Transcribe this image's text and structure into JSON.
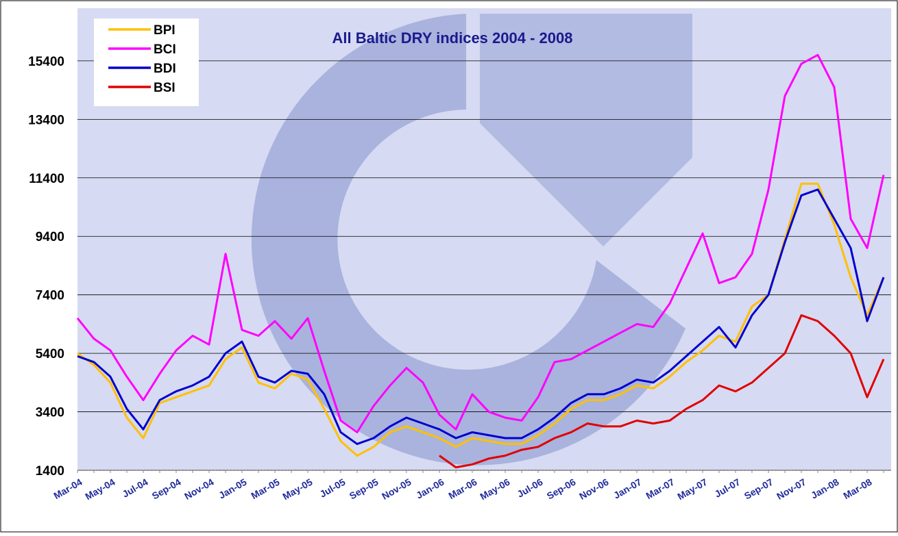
{
  "chart_data": {
    "type": "line",
    "title": "All Baltic DRY indices 2004 - 2008",
    "categories": [
      "Mar-04",
      null,
      "May-04",
      null,
      "Jul-04",
      null,
      "Sep-04",
      null,
      "Nov-04",
      null,
      "Jan-05",
      null,
      "Mar-05",
      null,
      "May-05",
      null,
      "Jul-05",
      null,
      "Sep-05",
      null,
      "Nov-05",
      null,
      "Jan-06",
      null,
      "Mar-06",
      null,
      "May-06",
      null,
      "Jul-06",
      null,
      "Sep-06",
      null,
      "Nov-06",
      null,
      "Jan-07",
      null,
      "Mar-07",
      null,
      "May-07",
      null,
      "Jul-07",
      null,
      "Sep-07",
      null,
      "Nov-07",
      null,
      "Jan-08",
      null,
      "Mar-08",
      null
    ],
    "series": [
      {
        "name": "BPI",
        "color": "#ffc000",
        "values": [
          5400,
          5000,
          4400,
          3200,
          2500,
          3700,
          3900,
          4100,
          4300,
          5200,
          5600,
          4400,
          4200,
          4700,
          4500,
          3500,
          2400,
          1900,
          2200,
          2700,
          2900,
          2700,
          2500,
          2200,
          2500,
          2400,
          2300,
          2300,
          2600,
          3000,
          3500,
          3800,
          3800,
          4000,
          4300,
          4200,
          4600,
          5100,
          5500,
          6000,
          5800,
          7000,
          7400,
          9300,
          11200,
          11200,
          9800,
          8000,
          6700,
          8000
        ]
      },
      {
        "name": "BCI",
        "color": "#ff00ff",
        "values": [
          6600,
          5900,
          5500,
          4600,
          3800,
          4700,
          5500,
          6000,
          5700,
          8800,
          6200,
          6000,
          6500,
          5900,
          6600,
          4800,
          3100,
          2700,
          3600,
          4300,
          4900,
          4400,
          3300,
          2800,
          4000,
          3400,
          3200,
          3100,
          3900,
          5100,
          5200,
          5500,
          5800,
          6100,
          6400,
          6300,
          7100,
          8300,
          9500,
          7800,
          8000,
          8800,
          11000,
          14200,
          15300,
          15600,
          14500,
          10000,
          9000,
          11500
        ]
      },
      {
        "name": "BDI",
        "color": "#0000cc",
        "values": [
          5300,
          5100,
          4600,
          3500,
          2800,
          3800,
          4100,
          4300,
          4600,
          5400,
          5800,
          4600,
          4400,
          4800,
          4700,
          4000,
          2700,
          2300,
          2500,
          2900,
          3200,
          3000,
          2800,
          2500,
          2700,
          2600,
          2500,
          2500,
          2800,
          3200,
          3700,
          4000,
          4000,
          4200,
          4500,
          4400,
          4800,
          5300,
          5800,
          6300,
          5600,
          6700,
          7400,
          9200,
          10800,
          11000,
          10000,
          9000,
          6500,
          8000
        ]
      },
      {
        "name": "BSI",
        "color": "#e00000",
        "values": [
          null,
          null,
          null,
          null,
          null,
          null,
          null,
          null,
          null,
          null,
          null,
          null,
          null,
          null,
          null,
          null,
          null,
          null,
          null,
          null,
          null,
          null,
          1900,
          1500,
          1600,
          1800,
          1900,
          2100,
          2200,
          2500,
          2700,
          3000,
          2900,
          2900,
          3100,
          3000,
          3100,
          3500,
          3800,
          4300,
          4100,
          4400,
          4900,
          5400,
          6700,
          6500,
          6000,
          5400,
          3900,
          5200
        ]
      }
    ],
    "ylim": [
      1400,
      17200
    ],
    "yticks": [
      1400,
      3400,
      5400,
      7400,
      9400,
      11400,
      13400,
      15400
    ],
    "grid": true,
    "legend": "upper left"
  }
}
